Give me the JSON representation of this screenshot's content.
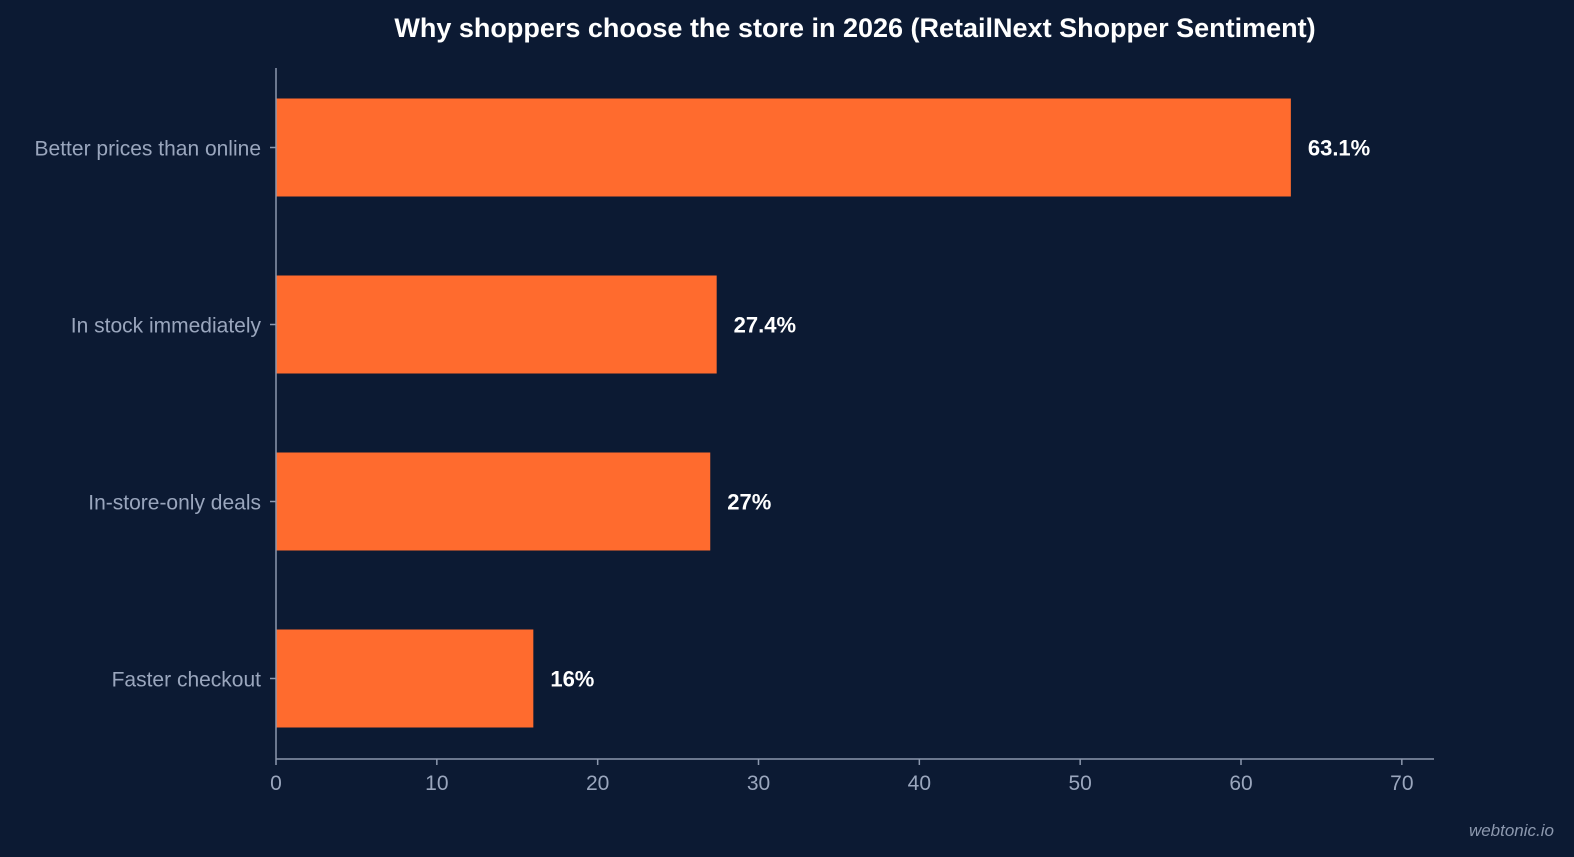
{
  "chart_data": {
    "type": "bar",
    "orientation": "horizontal",
    "title": "Why shoppers choose the store in 2026 (RetailNext Shopper Sentiment)",
    "categories": [
      "Better prices than online",
      "In stock immediately",
      "In-store-only deals",
      "Faster checkout"
    ],
    "values": [
      63.1,
      27.4,
      27,
      16
    ],
    "value_labels": [
      "63.1%",
      "27.4%",
      "27%",
      "16%"
    ],
    "xlim": [
      0,
      72
    ],
    "x_ticks": [
      0,
      10,
      20,
      30,
      40,
      50,
      60,
      70
    ],
    "x_tick_labels": [
      "0",
      "10",
      "20",
      "30",
      "40",
      "50",
      "60",
      "70"
    ],
    "grid": false,
    "legend": "none",
    "bar_color": "#ff6b2e",
    "background_color": "#0c1a33",
    "text_color": "#ffffff",
    "muted_text_color": "#9aa6bd",
    "axis_color": "#8c98ae"
  },
  "footer": {
    "credit": "webtonic.io"
  }
}
